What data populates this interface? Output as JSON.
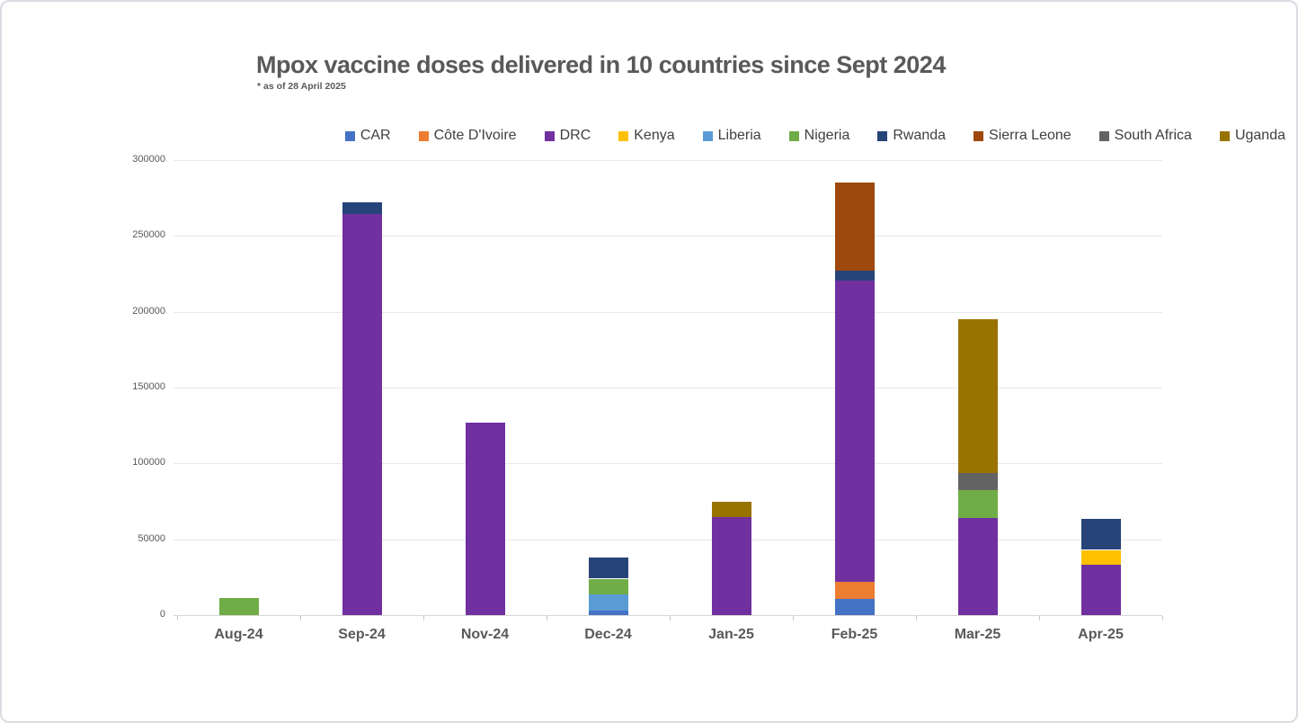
{
  "title": "Mpox vaccine doses delivered in 10 countries since Sept 2024",
  "subtitle": "* as of 28 April 2025",
  "colors": {
    "title_text": "#595959",
    "axis_text": "#595959",
    "legend_text": "#404040",
    "gridline": "#e8e8e8",
    "axis_line": "#d6d6d6"
  },
  "chart_data": {
    "type": "bar",
    "stacked": true,
    "title": "Mpox vaccine doses delivered in 10 countries since Sept 2024",
    "subtitle": "* as of 28 April 2025",
    "legend_position": "top",
    "grid": true,
    "categories": [
      "Aug-24",
      "Sep-24",
      "Nov-24",
      "Dec-24",
      "Jan-25",
      "Feb-25",
      "Mar-25",
      "Apr-25"
    ],
    "y_axis": {
      "min": 0,
      "max": 300000,
      "step": 50000,
      "tick_labels": [
        "0",
        "50000",
        "100000",
        "150000",
        "200000",
        "250000",
        "300000"
      ]
    },
    "series": [
      {
        "name": "CAR",
        "color": "#4472C4",
        "values": [
          0,
          0,
          0,
          3000,
          0,
          10500,
          0,
          0
        ]
      },
      {
        "name": "Côte D'Ivoire",
        "color": "#ED7D31",
        "values": [
          0,
          0,
          0,
          0,
          0,
          11500,
          0,
          0
        ]
      },
      {
        "name": "DRC",
        "color": "#7030A0",
        "values": [
          0,
          264500,
          127000,
          0,
          64500,
          198500,
          64000,
          33000
        ]
      },
      {
        "name": "Kenya",
        "color": "#FFC000",
        "values": [
          0,
          0,
          0,
          0,
          0,
          0,
          0,
          10000
        ]
      },
      {
        "name": "Liberia",
        "color": "#5B9BD5",
        "values": [
          0,
          0,
          0,
          10500,
          0,
          0,
          0,
          0
        ]
      },
      {
        "name": "Nigeria",
        "color": "#70AD47",
        "values": [
          11000,
          0,
          0,
          10500,
          0,
          0,
          18500,
          0
        ]
      },
      {
        "name": "Rwanda",
        "color": "#264478",
        "values": [
          0,
          7500,
          0,
          14000,
          0,
          6500,
          0,
          20500
        ]
      },
      {
        "name": "Sierra Leone",
        "color": "#9E480E",
        "values": [
          0,
          0,
          0,
          0,
          0,
          58000,
          0,
          0
        ]
      },
      {
        "name": "South Africa",
        "color": "#636363",
        "values": [
          0,
          0,
          0,
          0,
          0,
          0,
          11000,
          0
        ]
      },
      {
        "name": "Uganda",
        "color": "#997300",
        "values": [
          0,
          0,
          0,
          0,
          10500,
          0,
          101500,
          0
        ]
      }
    ]
  }
}
